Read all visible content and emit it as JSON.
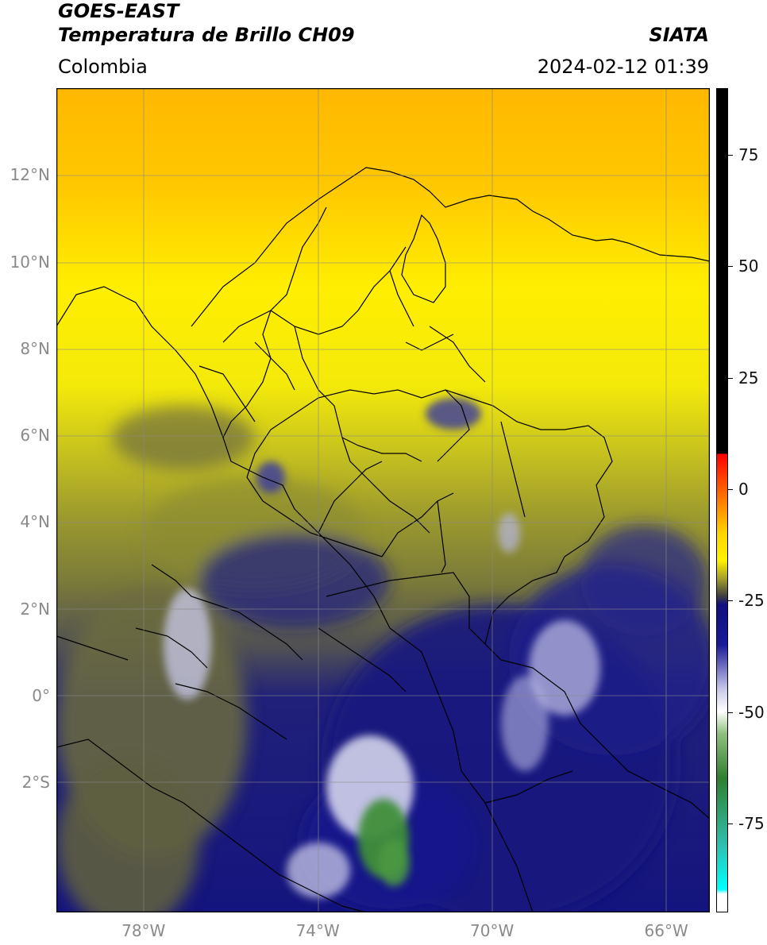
{
  "header": {
    "satellite": "GOES-EAST",
    "product": "Temperatura de Brillo CH09",
    "region": "Colombia",
    "source": "SIATA",
    "datetime": "2024-02-12 01:39"
  },
  "map": {
    "lat_ticks": [
      {
        "value": 12,
        "label": "12°N"
      },
      {
        "value": 10,
        "label": "10°N"
      },
      {
        "value": 8,
        "label": "8°N"
      },
      {
        "value": 6,
        "label": "6°N"
      },
      {
        "value": 4,
        "label": "4°N"
      },
      {
        "value": 2,
        "label": "2°N"
      },
      {
        "value": 0,
        "label": "0°"
      },
      {
        "value": -2,
        "label": "2°S"
      }
    ],
    "lon_ticks": [
      {
        "value": -78,
        "label": "78°W"
      },
      {
        "value": -74,
        "label": "74°W"
      },
      {
        "value": -70,
        "label": "70°W"
      },
      {
        "value": -66,
        "label": "66°W"
      }
    ],
    "lon_range": [
      -80,
      -65
    ],
    "lat_range": [
      -5,
      14
    ],
    "gridlines": true,
    "colors": {
      "warm_yellow": "#f2e600",
      "orange": "#ffb300",
      "olive": "#8f8f2f",
      "dark_olive": "#5d5d3a",
      "navy": "#1a1a82",
      "cold_white": "#e8e8f4",
      "green": "#3f8f3a",
      "coast": "#000000"
    }
  },
  "colorbar": {
    "range": [
      -95,
      90
    ],
    "ticks": [
      {
        "value": 75,
        "label": "75"
      },
      {
        "value": 50,
        "label": "50"
      },
      {
        "value": 25,
        "label": "25"
      },
      {
        "value": 0,
        "label": "0"
      },
      {
        "value": -25,
        "label": "-25"
      },
      {
        "value": -50,
        "label": "-50"
      },
      {
        "value": -75,
        "label": "-75"
      }
    ],
    "stops": [
      {
        "value": 90,
        "color": "#000000"
      },
      {
        "value": 8,
        "color": "#000000"
      },
      {
        "value": 7.9,
        "color": "#ff0000"
      },
      {
        "value": -1,
        "color": "#ff6a00"
      },
      {
        "value": -10,
        "color": "#ffd500"
      },
      {
        "value": -16,
        "color": "#fff200"
      },
      {
        "value": -20,
        "color": "#a6a12a"
      },
      {
        "value": -24,
        "color": "#404040"
      },
      {
        "value": -26,
        "color": "#101080"
      },
      {
        "value": -35,
        "color": "#1a1a9a"
      },
      {
        "value": -45,
        "color": "#c8c8e8"
      },
      {
        "value": -50,
        "color": "#ffffff"
      },
      {
        "value": -55,
        "color": "#8fbf7f"
      },
      {
        "value": -65,
        "color": "#2f7f2f"
      },
      {
        "value": -80,
        "color": "#2fbfaf"
      },
      {
        "value": -90,
        "color": "#00ffff"
      },
      {
        "value": -91,
        "color": "#ffffff"
      },
      {
        "value": -95,
        "color": "#ffffff"
      }
    ]
  }
}
